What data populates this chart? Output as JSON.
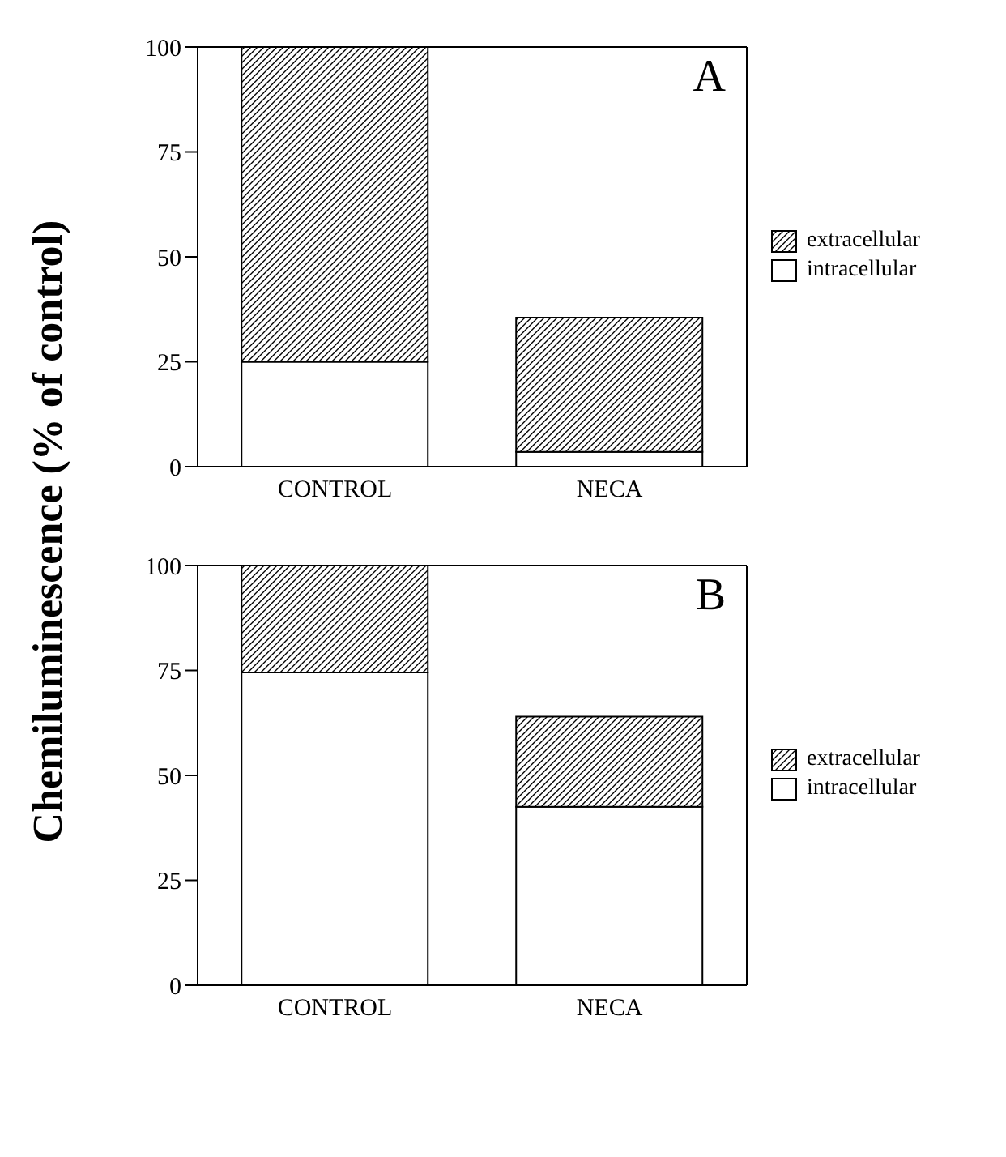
{
  "chart_data": [
    {
      "type": "bar",
      "title": "A",
      "ylabel": "Chemiluminescence (% of control)",
      "categories": [
        "CONTROL",
        "NECA"
      ],
      "stacked": true,
      "ylim": [
        0,
        100
      ],
      "yticks": [
        0,
        25,
        50,
        75,
        100
      ],
      "grid": false,
      "legend": "right",
      "series": [
        {
          "name": "intracellular",
          "color": "#ffffff",
          "values": [
            25,
            3.5
          ]
        },
        {
          "name": "extracellular",
          "color": "#000000",
          "values": [
            75,
            32
          ]
        }
      ]
    },
    {
      "type": "bar",
      "title": "B",
      "categories": [
        "CONTROL",
        "NECA"
      ],
      "stacked": true,
      "ylim": [
        0,
        100
      ],
      "yticks": [
        0,
        25,
        50,
        75,
        100
      ],
      "grid": false,
      "legend": "right",
      "series": [
        {
          "name": "intracellular",
          "color": "#ffffff",
          "values": [
            74.5,
            42.5
          ]
        },
        {
          "name": "extracellular",
          "color": "#000000",
          "values": [
            25.5,
            21.5
          ]
        }
      ]
    }
  ]
}
